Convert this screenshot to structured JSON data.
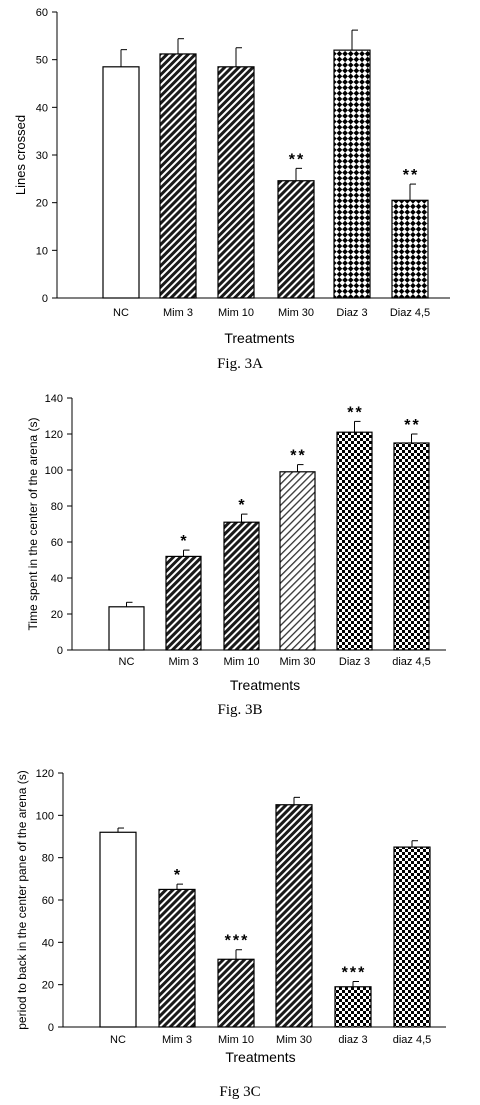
{
  "chart_data": [
    {
      "type": "bar",
      "caption": "Fig. 3A",
      "ylabel": "Lines crossed",
      "xlabel": "Treatments",
      "ylim": [
        0,
        60
      ],
      "yticks": [
        0,
        10,
        20,
        30,
        40,
        50,
        60
      ],
      "categories": [
        "NC",
        "Mim 3",
        "Mim 10",
        "Mim 30",
        "Diaz 3",
        "Diaz 4,5"
      ],
      "values": [
        48.5,
        51.2,
        48.5,
        24.6,
        52.0,
        20.5
      ],
      "errors": [
        3.6,
        3.2,
        4.0,
        2.6,
        4.2,
        3.4
      ],
      "significance": [
        "",
        "",
        "",
        "**",
        "",
        "**"
      ],
      "patterns": [
        "none",
        "diag-dense",
        "diag-dense",
        "diag-dense",
        "diamond",
        "diamond"
      ]
    },
    {
      "type": "bar",
      "caption": "Fig. 3B",
      "ylabel": "Time spent in the center of the arena (s)",
      "xlabel": "Treatments",
      "ylim": [
        0,
        140
      ],
      "yticks": [
        0,
        20,
        40,
        60,
        80,
        100,
        120,
        140
      ],
      "categories": [
        "NC",
        "Mim 3",
        "Mim 10",
        "Mim 30",
        "Diaz 3",
        "diaz 4,5"
      ],
      "values": [
        24,
        52,
        71,
        99,
        121,
        115
      ],
      "errors": [
        2.5,
        3.5,
        4.5,
        4.0,
        6.0,
        5.0
      ],
      "significance": [
        "",
        "*",
        "*",
        "**",
        "**",
        "**"
      ],
      "patterns": [
        "none",
        "diag-dense",
        "diag-dense",
        "diag-light",
        "checker",
        "checker"
      ]
    },
    {
      "type": "bar",
      "caption": "Fig 3C",
      "ylabel": "period to back in the center pane of the arena (s)",
      "xlabel": "Treatments",
      "ylim": [
        0,
        120
      ],
      "yticks": [
        0,
        20,
        40,
        60,
        80,
        100,
        120
      ],
      "categories": [
        "NC",
        "Mim 3",
        "Mim 10",
        "Mim 30",
        "diaz 3",
        "diaz 4,5"
      ],
      "values": [
        92,
        65,
        32,
        105,
        19,
        85
      ],
      "errors": [
        2.0,
        2.5,
        4.5,
        3.5,
        2.5,
        3.0
      ],
      "significance": [
        "",
        "*",
        "***",
        "",
        "***",
        ""
      ],
      "patterns": [
        "none",
        "diag-dense",
        "diag-dense",
        "diag-dense",
        "checker",
        "checker"
      ]
    }
  ]
}
